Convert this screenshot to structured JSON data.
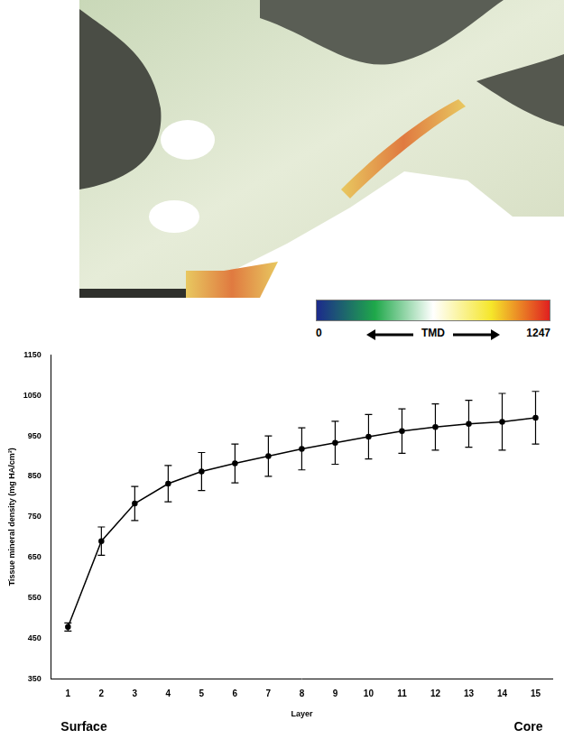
{
  "chart_data": {
    "type": "line",
    "x_label": "Layer",
    "y_label": "Tissue mineral density (mg HA/cm³)",
    "categories": [
      1,
      2,
      3,
      4,
      5,
      6,
      7,
      8,
      9,
      10,
      11,
      12,
      13,
      14,
      15
    ],
    "values": [
      478,
      690,
      783,
      832,
      862,
      882,
      900,
      918,
      933,
      948,
      962,
      972,
      980,
      985,
      995
    ],
    "errors": [
      10,
      35,
      42,
      45,
      47,
      48,
      50,
      52,
      53,
      55,
      55,
      57,
      58,
      70,
      65
    ],
    "color": "#000000",
    "marker": "circle",
    "ylim": [
      350,
      1150
    ],
    "yticks": [
      350,
      450,
      550,
      650,
      750,
      850,
      950,
      1050,
      1150
    ],
    "grid": false,
    "annotations": [
      {
        "text": "Surface",
        "x": 1
      },
      {
        "text": "Core",
        "x": 15
      }
    ],
    "colorbar": {
      "label": "TMD",
      "range": [
        0,
        1247
      ],
      "ticks": [
        0,
        1247
      ],
      "colors": [
        "#1c2a8c",
        "#1fa84a",
        "#ffffff",
        "#f5e62a",
        "#e02020"
      ]
    }
  }
}
